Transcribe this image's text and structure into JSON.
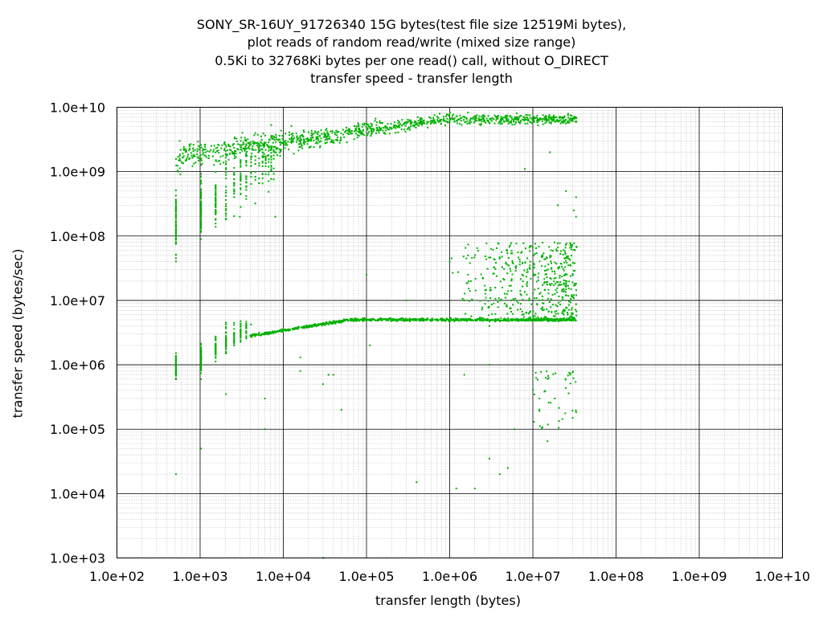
{
  "chart_data": {
    "type": "scatter",
    "title_lines": [
      "SONY_SR-16UY_91726340 15G bytes(test file size 12519Mi bytes),",
      "plot reads of random read/write (mixed size range)",
      "0.5Ki to 32768Ki bytes per one read() call, without O_DIRECT",
      "transfer speed - transfer length"
    ],
    "xlabel": "transfer length (bytes)",
    "ylabel": "transfer speed (bytes/sec)",
    "x_scale": "log",
    "y_scale": "log",
    "xlim": [
      100,
      10000000000
    ],
    "ylim": [
      1000,
      10000000000
    ],
    "x_ticks": [
      100,
      1000,
      10000,
      100000,
      1000000,
      10000000,
      100000000,
      1000000000,
      10000000000
    ],
    "x_tick_labels": [
      "1.0e+02",
      "1.0e+03",
      "1.0e+04",
      "1.0e+05",
      "1.0e+06",
      "1.0e+07",
      "1.0e+08",
      "1.0e+09",
      "1.0e+10"
    ],
    "y_ticks": [
      1000,
      10000,
      100000,
      1000000,
      10000000,
      100000000,
      1000000000,
      10000000000
    ],
    "y_tick_labels": [
      "1.0e+03",
      "1.0e+04",
      "1.0e+05",
      "1.0e+06",
      "1.0e+07",
      "1.0e+08",
      "1.0e+09",
      "1.0e+10"
    ],
    "grid": true,
    "minor_grid": true,
    "marker_color": "#00b000",
    "series": [
      {
        "clusters": [
          {
            "x_min": 4000,
            "x_max": 33554432,
            "y_center": 5000000,
            "y_spread": 0.08,
            "count": 900,
            "shape": "band-low"
          },
          {
            "x_min": 512,
            "x_max": 33554432,
            "y_center": 6500000000,
            "y_spread": 0.25,
            "count": 1100,
            "shape": "band-high"
          },
          {
            "x_min": 512,
            "x_max": 4000,
            "y_center": 1500000,
            "y_spread": 0.5,
            "count": 260,
            "shape": "ramp-low"
          },
          {
            "x_min": 512,
            "x_max": 8000,
            "y_center": 300000000,
            "y_spread": 0.8,
            "count": 320,
            "shape": "ramp-high"
          },
          {
            "x_min": 1000000,
            "x_max": 33554432,
            "y_center": 20000000,
            "y_spread": 0.6,
            "count": 500,
            "shape": "scatter-mid"
          },
          {
            "x_min": 10000000,
            "x_max": 33554432,
            "y_center": 300000,
            "y_spread": 0.5,
            "count": 45,
            "shape": "scatter-low"
          }
        ],
        "points": [
          [
            512,
            20000
          ],
          [
            1024,
            50000
          ],
          [
            1024,
            600000
          ],
          [
            2048,
            350000
          ],
          [
            3000,
            200000000
          ],
          [
            6000,
            300000
          ],
          [
            6000,
            100000
          ],
          [
            8000,
            200000000
          ],
          [
            16000,
            1300000
          ],
          [
            16000,
            800000
          ],
          [
            30000,
            1000
          ],
          [
            30000,
            500000
          ],
          [
            35000,
            700000
          ],
          [
            40000,
            700000
          ],
          [
            50000,
            200000
          ],
          [
            100000,
            25000000
          ],
          [
            110000,
            2000000
          ],
          [
            300000,
            10000000
          ],
          [
            400000,
            15000
          ],
          [
            500000,
            5000000
          ],
          [
            1000000,
            40000000
          ],
          [
            1200000,
            12000
          ],
          [
            1500000,
            700000
          ],
          [
            2000000,
            12000
          ],
          [
            3000000,
            1000000
          ],
          [
            3000000,
            4000000
          ],
          [
            3000000,
            35000
          ],
          [
            4000000,
            20000
          ],
          [
            5000000,
            25000
          ],
          [
            6000000,
            100000
          ],
          [
            7000000,
            40000000
          ],
          [
            8000000,
            1100000000
          ],
          [
            12000000,
            300000
          ],
          [
            15000000,
            65000
          ],
          [
            16000000,
            2000000000
          ],
          [
            20000000,
            300000000
          ],
          [
            25000000,
            500000000
          ],
          [
            28000000,
            700000
          ],
          [
            30000000,
            150000
          ],
          [
            31000000,
            250000000
          ],
          [
            33000000,
            200000000
          ],
          [
            33000000,
            400000000
          ]
        ]
      }
    ]
  }
}
